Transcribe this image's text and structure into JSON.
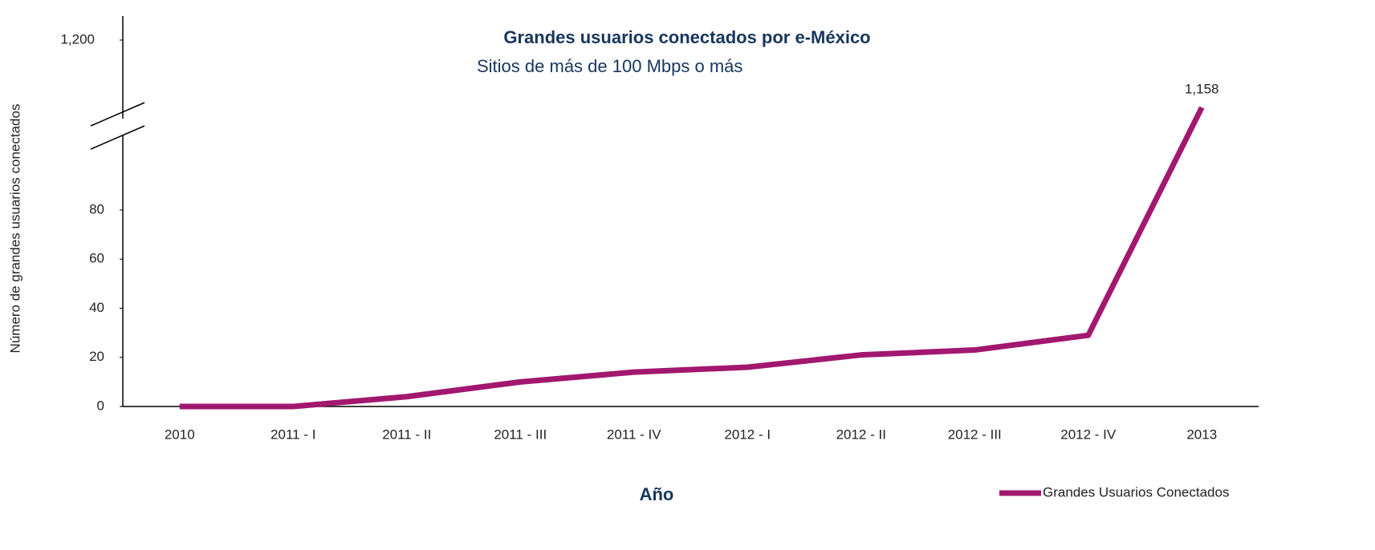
{
  "chart_data": {
    "type": "line",
    "title": "Grandes usuarios conectados por  e-México",
    "subtitle": "Sitios de más de 100 Mbps o más",
    "x_label": "Año",
    "y_label": "Número de grandes usuarios conectados",
    "categories": [
      "2010",
      "2011 - I",
      "2011 - II",
      "2011 - III",
      "2011 - IV",
      "2012 - I",
      "2012 - II",
      "2012 - III",
      "2012 - IV",
      "2013"
    ],
    "series": [
      {
        "name": "Grandes Usuarios Conectados",
        "color": "#a2186f",
        "values": [
          0,
          0,
          4,
          10,
          14,
          16,
          21,
          23,
          29,
          1158
        ],
        "value_labels": [
          null,
          null,
          null,
          null,
          null,
          null,
          null,
          null,
          null,
          "1,158"
        ]
      }
    ],
    "ylim": [
      0,
      1210
    ],
    "axis_break": [
      95,
      1150
    ],
    "yticks": [
      0,
      20,
      40,
      60,
      80,
      {
        "value": 1200,
        "label": "1,200"
      }
    ],
    "legend": "bottom-right"
  }
}
